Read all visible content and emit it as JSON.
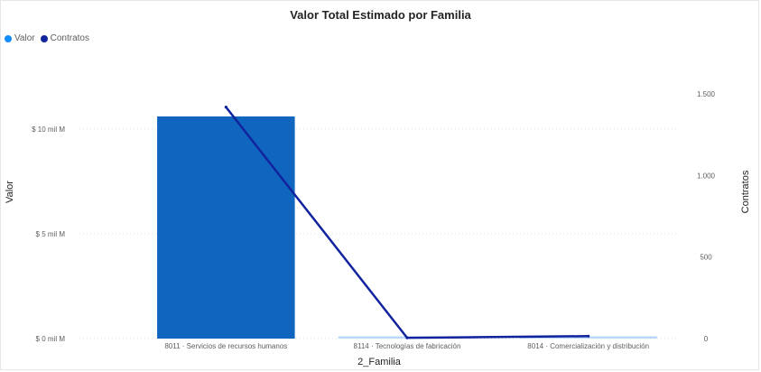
{
  "chart_data": {
    "type": "bar",
    "title": "Valor Total Estimado por Familia",
    "xlabel": "2_Familia",
    "ylabel": "Valor",
    "y2label": "Contratos",
    "categories": [
      "8011 · Servicios de recursos humanos",
      "8114 · Tecnologías de fabricación",
      "8014 · Comercialización y distribución"
    ],
    "series": [
      {
        "name": "Valor",
        "type": "bar",
        "axis": "left",
        "color": "#118dff",
        "bar_color": "#1066bf",
        "values": [
          10600000000000,
          80000000000,
          80000000000
        ]
      },
      {
        "name": "Contratos",
        "type": "line",
        "axis": "right",
        "color": "#12239e",
        "values": [
          1420,
          5,
          15
        ]
      }
    ],
    "ylim": [
      0,
      14000000000000
    ],
    "yticks": [
      0,
      5000000000000,
      10000000000000
    ],
    "ytick_labels": [
      "$ 0 mil M",
      "$ 5 mil M",
      "$ 10 mil M"
    ],
    "y2lim": [
      0,
      1800
    ],
    "y2ticks": [
      0,
      500,
      1000,
      1500
    ],
    "y2tick_labels": [
      "0",
      "500",
      "1.000",
      "1.500"
    ],
    "grid": true,
    "legend_position": "top-left"
  }
}
